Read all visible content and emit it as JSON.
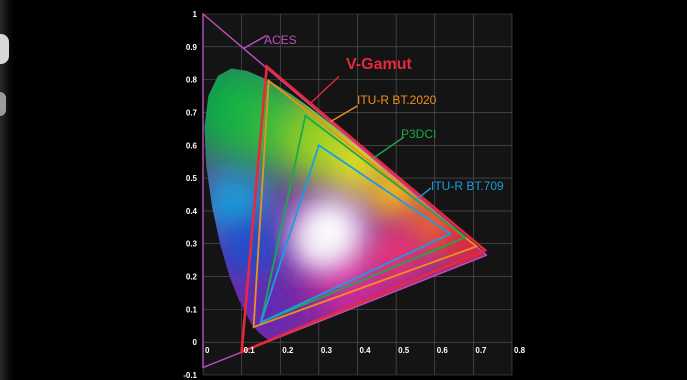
{
  "chart_data": {
    "type": "line",
    "title": "",
    "xlabel": "",
    "ylabel": "",
    "xlim": [
      0,
      0.8
    ],
    "ylim": [
      -0.1,
      1
    ],
    "x_ticks": [
      "0",
      "0.1",
      "0.2",
      "0.3",
      "0.4",
      "0.5",
      "0.6",
      "0.7",
      "0.8"
    ],
    "y_ticks": [
      "1",
      "0.9",
      "0.8",
      "0.7",
      "0.6",
      "0.5",
      "0.4",
      "0.3",
      "0.2",
      "0.1",
      "0",
      "-0.1"
    ],
    "grid": true,
    "spectral_locus": {
      "x": [
        0.1741,
        0.1738,
        0.1736,
        0.173,
        0.1714,
        0.1689,
        0.1644,
        0.1566,
        0.144,
        0.1241,
        0.0913,
        0.0687,
        0.0454,
        0.0235,
        0.0082,
        0.0039,
        0.0139,
        0.0389,
        0.0743,
        0.1142,
        0.1547,
        0.1929,
        0.2296,
        0.2658,
        0.3016,
        0.3373,
        0.3731,
        0.4087,
        0.4441,
        0.4788,
        0.5125,
        0.5448,
        0.5752,
        0.6029,
        0.627,
        0.6482,
        0.6658,
        0.6801,
        0.6915,
        0.7006,
        0.7079,
        0.7347
      ],
      "y": [
        0.005,
        0.0049,
        0.0049,
        0.0048,
        0.0051,
        0.0069,
        0.0109,
        0.0177,
        0.0297,
        0.0578,
        0.1327,
        0.2007,
        0.295,
        0.4127,
        0.5384,
        0.6548,
        0.7502,
        0.812,
        0.8338,
        0.8262,
        0.8059,
        0.7816,
        0.7543,
        0.7243,
        0.6923,
        0.6589,
        0.6245,
        0.5896,
        0.5547,
        0.5202,
        0.4866,
        0.4544,
        0.4242,
        0.3965,
        0.3725,
        0.3514,
        0.334,
        0.3197,
        0.3083,
        0.2993,
        0.292,
        0.2653
      ]
    },
    "series": [
      {
        "name": "ACES",
        "color": "#c050c0",
        "x": [
          0.7347,
          0.0,
          0.0001
        ],
        "y": [
          0.2653,
          1.0,
          -0.077
        ]
      },
      {
        "name": "V-Gamut",
        "color": "#e8283c",
        "x": [
          0.73,
          0.165,
          0.1
        ],
        "y": [
          0.28,
          0.84,
          -0.03
        ]
      },
      {
        "name": "ITU-R BT.2020",
        "color": "#f0901c",
        "x": [
          0.708,
          0.17,
          0.131
        ],
        "y": [
          0.292,
          0.797,
          0.046
        ]
      },
      {
        "name": "P3DCI",
        "color": "#1aaa4a",
        "x": [
          0.68,
          0.265,
          0.15
        ],
        "y": [
          0.32,
          0.69,
          0.06
        ]
      },
      {
        "name": "ITU-R BT.709",
        "color": "#1a9ee0",
        "x": [
          0.64,
          0.3,
          0.15
        ],
        "y": [
          0.33,
          0.6,
          0.06
        ]
      }
    ],
    "annotations": [
      {
        "text": "ACES",
        "color": "#c050c0"
      },
      {
        "text": "V-Gamut",
        "color": "#e8283c"
      },
      {
        "text": "ITU-R BT.2020",
        "color": "#f0901c"
      },
      {
        "text": "P3DCI",
        "color": "#1aaa4a"
      },
      {
        "text": "ITU-R BT.709",
        "color": "#1a9ee0"
      }
    ],
    "colors": {
      "background": "#000000",
      "plot_area": "#141414",
      "grid": "#5a5a5a",
      "tick_text": "#ffffff"
    }
  }
}
